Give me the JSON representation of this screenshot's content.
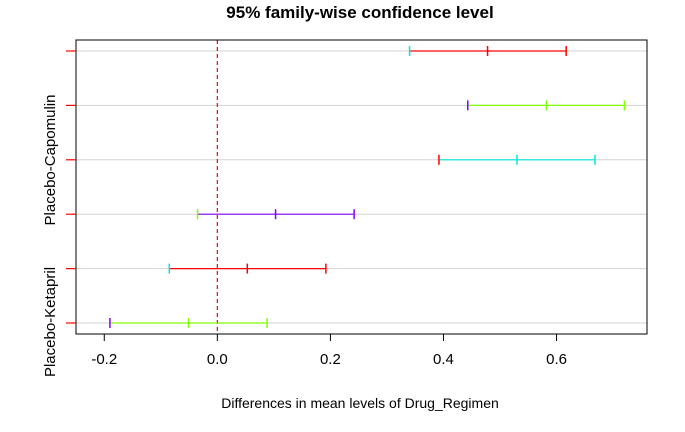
{
  "chart_data": {
    "type": "errorbar",
    "title": "95% family-wise confidence level",
    "xlabel": "Differences in mean levels of Drug_Regimen",
    "ylabel": "",
    "xlim": [
      -0.25,
      0.76
    ],
    "x_ticks": [
      -0.2,
      0.0,
      0.2,
      0.4,
      0.6
    ],
    "x_tick_labels": [
      "-0.2",
      "0.0",
      "0.2",
      "0.4",
      "0.6"
    ],
    "y_tick_labels": [
      "Placebo-Capomulin",
      "Placebo-Ketapril"
    ],
    "grid": "horizontal",
    "reference_line": {
      "x": 0,
      "color": "#ff0000",
      "style": "dashed"
    },
    "rows": [
      {
        "lower": 0.34,
        "center": 0.478,
        "upper": 0.617,
        "color": "#ff0000",
        "lower_color": "#00e5e5",
        "center_color": "#ff0000",
        "upper_color": "#ff0000"
      },
      {
        "lower": 0.443,
        "center": 0.582,
        "upper": 0.72,
        "color": "#80ff00",
        "lower_color": "#8000ff",
        "center_color": "#80ff00",
        "upper_color": "#80ff00"
      },
      {
        "lower": 0.392,
        "center": 0.53,
        "upper": 0.668,
        "color": "#00e5e5",
        "lower_color": "#ff0000",
        "center_color": "#00e5e5",
        "upper_color": "#00e5e5"
      },
      {
        "lower": -0.035,
        "center": 0.103,
        "upper": 0.242,
        "color": "#8000ff",
        "lower_color": "#80ff00",
        "center_color": "#8000ff",
        "upper_color": "#8000ff"
      },
      {
        "lower": -0.085,
        "center": 0.053,
        "upper": 0.192,
        "color": "#ff0000",
        "lower_color": "#00e5e5",
        "center_color": "#ff0000",
        "upper_color": "#ff0000"
      },
      {
        "lower": -0.19,
        "center": -0.051,
        "upper": 0.088,
        "color": "#80ff00",
        "lower_color": "#8000ff",
        "center_color": "#80ff00",
        "upper_color": "#80ff00"
      }
    ]
  }
}
